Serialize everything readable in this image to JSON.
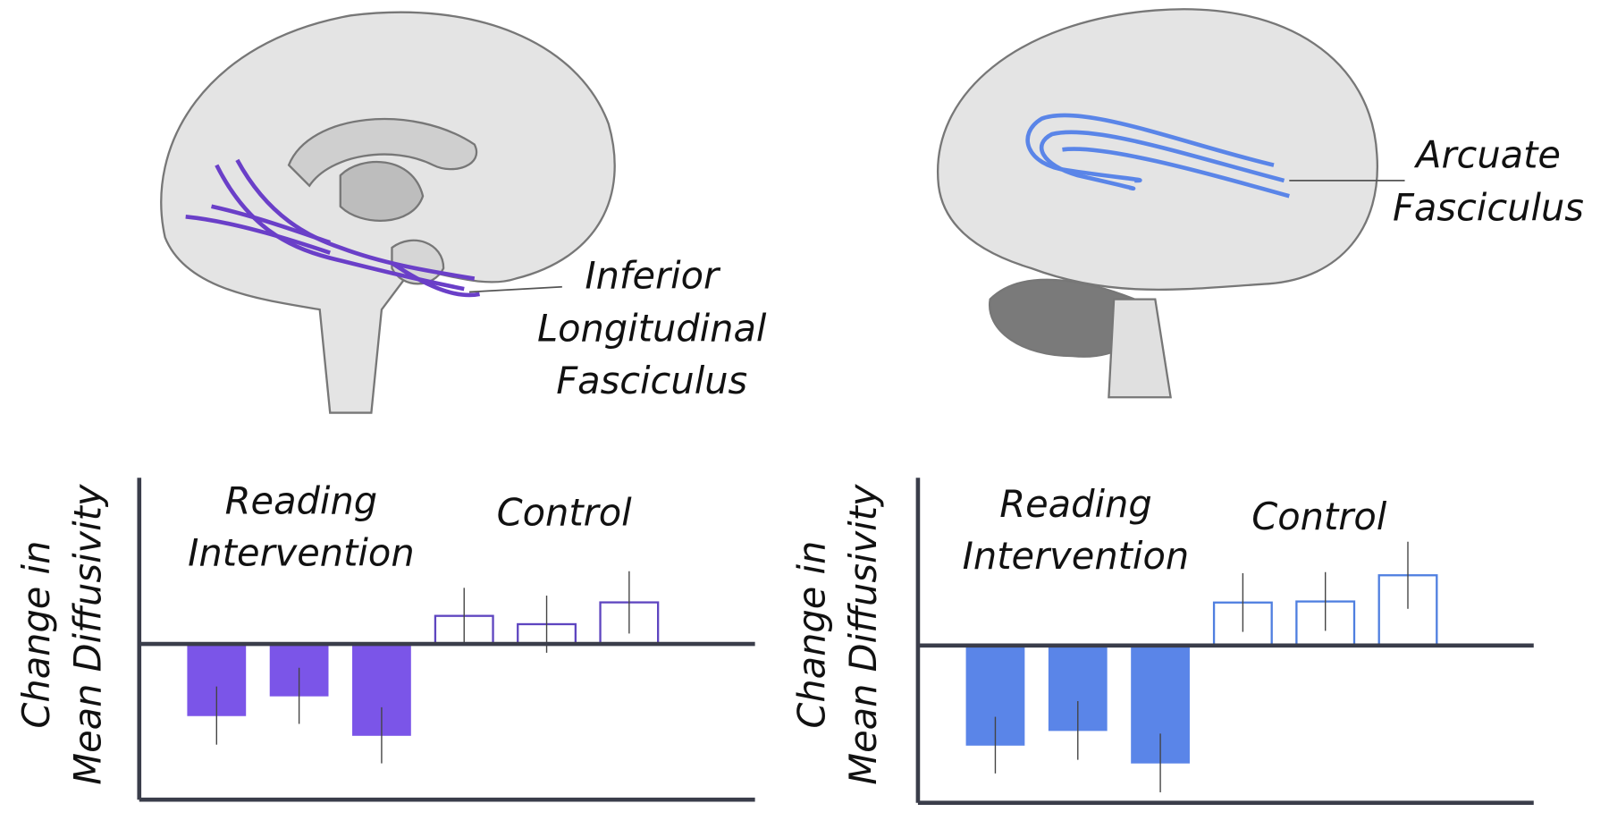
{
  "illustrations": [
    {
      "label_lines": [
        "Inferior",
        "Longitudinal",
        "Fasciculus"
      ]
    },
    {
      "label_lines": [
        "Arcuate",
        "Fasciculus"
      ]
    }
  ],
  "chart_data": [
    {
      "type": "bar",
      "ylabel_lines": [
        "Change in",
        "Mean Diffusivity"
      ],
      "ylim": [
        -15,
        16
      ],
      "series": [
        {
          "name": "Reading Intervention",
          "color": "#7b55e8",
          "style": "filled",
          "values": [
            -6.9,
            -5.0,
            -8.8
          ],
          "errors": [
            2.8,
            2.7,
            2.7
          ]
        },
        {
          "name": "Control",
          "color": "#5e45c0",
          "style": "outline",
          "values": [
            2.7,
            1.9,
            4.0
          ],
          "errors": [
            2.7,
            2.75,
            3.0
          ]
        }
      ]
    },
    {
      "type": "bar",
      "ylabel_lines": [
        "Change in",
        "Mean Diffusivity"
      ],
      "ylim": [
        -15,
        16
      ],
      "series": [
        {
          "name": "Reading Intervention",
          "color": "#5a85e8",
          "style": "filled",
          "values": [
            -9.5,
            -8.1,
            -11.2
          ],
          "errors": [
            2.7,
            2.8,
            2.8
          ]
        },
        {
          "name": "Control",
          "color": "#4f7fe0",
          "style": "outline",
          "values": [
            4.1,
            4.2,
            6.7
          ],
          "errors": [
            2.8,
            2.8,
            3.2
          ]
        }
      ]
    }
  ]
}
